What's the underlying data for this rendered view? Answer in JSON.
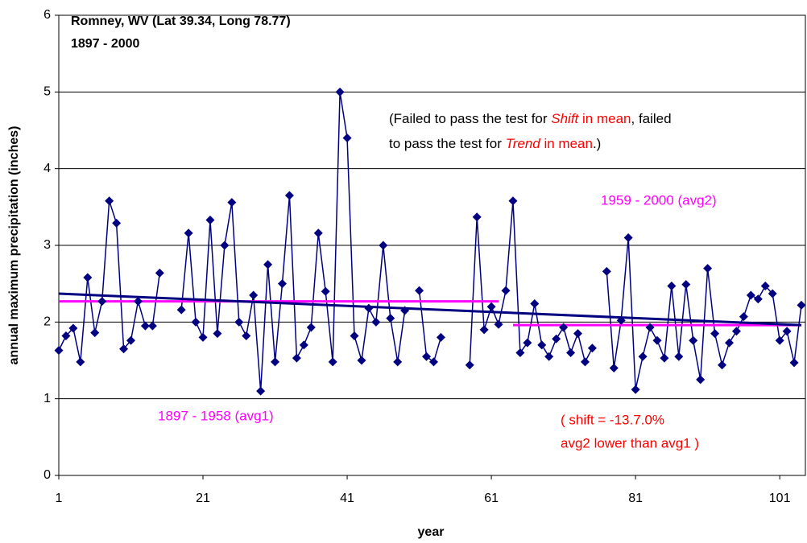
{
  "chart_data": {
    "type": "line",
    "title": "Romney, WV (Lat 39.34, Long 78.77)",
    "subtitle": "1897 - 2000",
    "x_label": "year",
    "y_label": "annual maximum precipitation (inches)",
    "xlim": [
      1,
      104
    ],
    "ylim": [
      0,
      6
    ],
    "xticks": [
      1,
      21,
      41,
      61,
      81,
      101
    ],
    "yticks": [
      0,
      1,
      2,
      3,
      4,
      5,
      6
    ],
    "grid": true,
    "color": "#000080",
    "values": [
      1.63,
      1.82,
      1.92,
      1.48,
      2.58,
      1.86,
      2.27,
      3.58,
      3.29,
      1.65,
      1.76,
      2.27,
      1.95,
      1.95,
      2.64,
      null,
      null,
      2.16,
      3.16,
      2.0,
      1.8,
      3.33,
      1.85,
      3.0,
      3.56,
      2.0,
      1.82,
      2.35,
      1.1,
      2.75,
      1.48,
      2.5,
      3.65,
      1.53,
      1.7,
      1.93,
      3.16,
      2.4,
      1.48,
      5.0,
      4.4,
      1.82,
      1.5,
      2.18,
      2.0,
      3.0,
      2.05,
      1.48,
      2.15,
      null,
      2.41,
      1.55,
      1.48,
      1.8,
      null,
      null,
      null,
      1.44,
      3.37,
      1.9,
      2.2,
      1.97,
      2.41,
      3.58,
      1.6,
      1.73,
      2.24,
      1.7,
      1.55,
      1.78,
      1.93,
      1.6,
      1.85,
      1.48,
      1.66,
      null,
      2.66,
      1.4,
      2.02,
      3.1,
      1.12,
      1.55,
      1.93,
      1.76,
      1.53,
      2.47,
      1.55,
      2.49,
      1.76,
      1.25,
      2.7,
      1.85,
      1.44,
      1.73,
      1.88,
      2.07,
      2.35,
      2.3,
      2.47,
      2.37,
      1.76,
      1.88,
      1.47,
      2.22
    ],
    "trend": {
      "x": [
        1,
        104
      ],
      "values": [
        2.37,
        1.96
      ],
      "color": "#000080"
    },
    "averages": [
      {
        "x": [
          1,
          62
        ],
        "value": 2.27,
        "label": "1897 - 1958 (avg1)",
        "color": "#ff00ff"
      },
      {
        "x": [
          64,
          104
        ],
        "value": 1.96,
        "label": "1959 - 2000 (avg2)",
        "color": "#ff00ff"
      }
    ],
    "test_note": [
      [
        {
          "text": "(Failed to pass the test for ",
          "color": "#000000"
        },
        {
          "text": "Shift",
          "color": "#ff0000",
          "italic": true
        },
        {
          "text": " in mean",
          "color": "#ff0000"
        },
        {
          "text": ", failed",
          "color": "#000000"
        }
      ],
      [
        {
          "text": "to pass the test for ",
          "color": "#000000"
        },
        {
          "text": "Trend",
          "color": "#ff0000",
          "italic": true
        },
        {
          "text": " in mean",
          "color": "#ff0000"
        },
        {
          "text": ".)",
          "color": "#000000"
        }
      ]
    ],
    "shift_note": {
      "lines": [
        "( shift = -13.7.0%",
        "avg2 lower than avg1 )"
      ],
      "color": "#ff0000"
    }
  }
}
